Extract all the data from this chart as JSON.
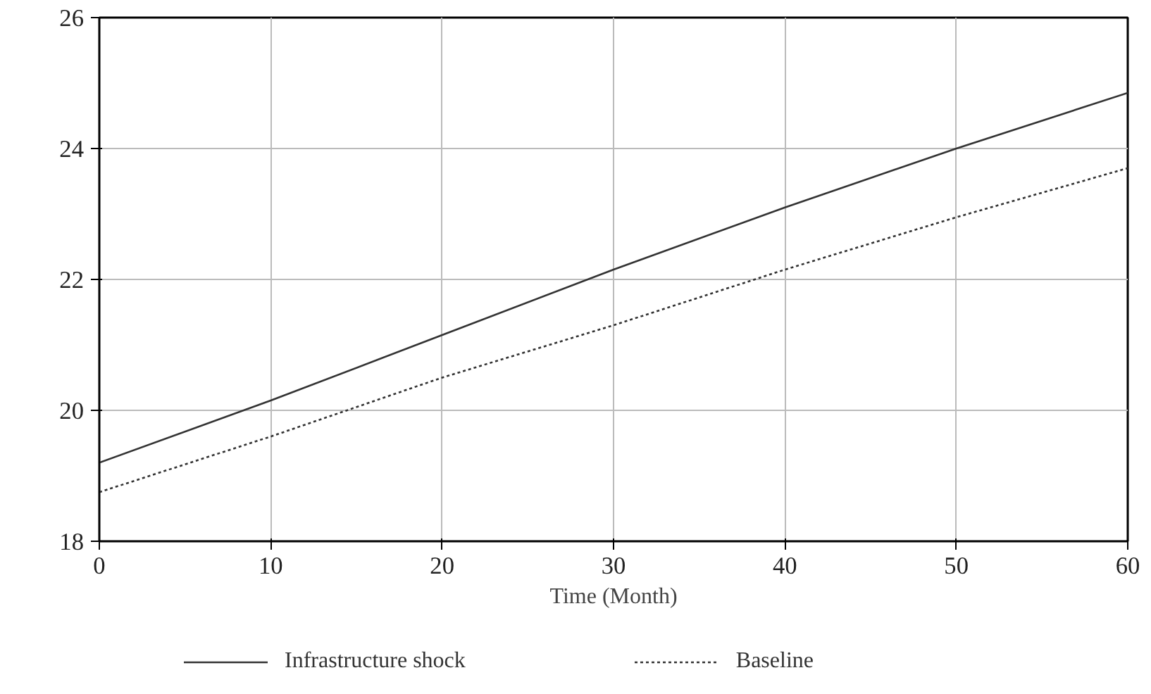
{
  "chart_data": {
    "type": "line",
    "xlabel": "Time (Month)",
    "x": [
      0,
      10,
      20,
      30,
      40,
      50,
      60
    ],
    "series": [
      {
        "name": "Infrastructure shock",
        "color": "#333333",
        "line_style": "solid",
        "values": [
          19.2,
          20.15,
          21.15,
          22.15,
          23.1,
          24.0,
          24.85
        ]
      },
      {
        "name": "Baseline",
        "color": "#333333",
        "line_style": "dotted",
        "values": [
          18.75,
          19.6,
          20.5,
          21.3,
          22.15,
          22.95,
          23.7
        ]
      }
    ],
    "xlim": [
      0,
      60
    ],
    "ylim": [
      18,
      26
    ],
    "xticks": [
      0,
      10,
      20,
      30,
      40,
      50,
      60
    ],
    "yticks": [
      18,
      20,
      22,
      24,
      26
    ],
    "grid": true,
    "legend": "bottom",
    "marker": "none"
  }
}
